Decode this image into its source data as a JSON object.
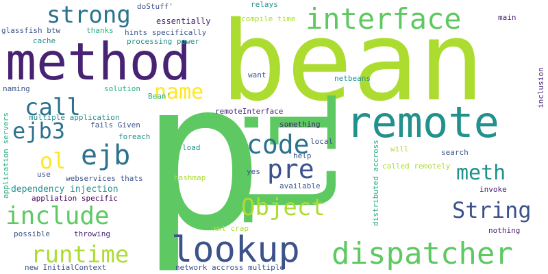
{
  "background": "#ffffff",
  "palette": {
    "purple": "#482374",
    "indigo": "#3b528b",
    "blue": "#2c728e",
    "teal": "#21918c",
    "green": "#28ae80",
    "lightgreen": "#5ec962",
    "lime": "#addc30",
    "yellow": "#fde725",
    "dark": "#440154"
  },
  "words": [
    {
      "text": "p",
      "color": "lightgreen"
    },
    {
      "text": "bean",
      "color": "lime"
    },
    {
      "text": "li",
      "color": "lightgreen"
    },
    {
      "text": "method",
      "color": "purple"
    },
    {
      "text": "remote",
      "color": "teal"
    },
    {
      "text": "lookup",
      "color": "indigo"
    },
    {
      "text": "dispatcher",
      "color": "lightgreen"
    },
    {
      "text": "interface",
      "color": "lightgreen"
    },
    {
      "text": "strong",
      "color": "blue"
    },
    {
      "text": "name",
      "color": "yellow"
    },
    {
      "text": "call",
      "color": "blue"
    },
    {
      "text": "ejb3",
      "color": "blue"
    },
    {
      "text": "ejb",
      "color": "blue"
    },
    {
      "text": "ol",
      "color": "yellow"
    },
    {
      "text": "code",
      "color": "blue"
    },
    {
      "text": "pre",
      "color": "indigo"
    },
    {
      "text": "meth",
      "color": "teal"
    },
    {
      "text": "String",
      "color": "indigo"
    },
    {
      "text": "Object",
      "color": "lime"
    },
    {
      "text": "include",
      "color": "lightgreen"
    },
    {
      "text": "runtime",
      "color": "lime"
    },
    {
      "text": "dependency injection",
      "color": "teal"
    },
    {
      "text": "doStuff'",
      "color": "indigo"
    },
    {
      "text": "essentially",
      "color": "purple"
    },
    {
      "text": "relays",
      "color": "teal"
    },
    {
      "text": "compile time",
      "color": "lime"
    },
    {
      "text": "main",
      "color": "purple"
    },
    {
      "text": "glassfish btw",
      "color": "indigo"
    },
    {
      "text": "thanks",
      "color": "green"
    },
    {
      "text": "hints specifically",
      "color": "indigo"
    },
    {
      "text": "processing power",
      "color": "teal"
    },
    {
      "text": "cache",
      "color": "teal"
    },
    {
      "text": "want",
      "color": "indigo"
    },
    {
      "text": "Bean'",
      "color": "green"
    },
    {
      "text": "netbeans",
      "color": "teal"
    },
    {
      "text": "inclusion",
      "color": "purple"
    },
    {
      "text": "naming",
      "color": "indigo"
    },
    {
      "text": "solution",
      "color": "green"
    },
    {
      "text": "remoteInterface",
      "color": "purple"
    },
    {
      "text": "something",
      "color": "purple"
    },
    {
      "text": "multiple application",
      "color": "teal"
    },
    {
      "text": "fails Given",
      "color": "indigo"
    },
    {
      "text": "foreach",
      "color": "teal"
    },
    {
      "text": "application servers",
      "color": "green"
    },
    {
      "text": "distributed accross",
      "color": "green"
    },
    {
      "text": "load",
      "color": "teal"
    },
    {
      "text": "local",
      "color": "indigo"
    },
    {
      "text": "help",
      "color": "indigo"
    },
    {
      "text": "will",
      "color": "lime"
    },
    {
      "text": "search",
      "color": "indigo"
    },
    {
      "text": "called remotely",
      "color": "lime"
    },
    {
      "text": "use",
      "color": "indigo"
    },
    {
      "text": "webservices thats",
      "color": "indigo"
    },
    {
      "text": "hashmap",
      "color": "lime"
    },
    {
      "text": "yes",
      "color": "indigo"
    },
    {
      "text": "available",
      "color": "indigo"
    },
    {
      "text": "invoke",
      "color": "purple"
    },
    {
      "text": "appliation specific",
      "color": "dark"
    },
    {
      "text": "nothing",
      "color": "purple"
    },
    {
      "text": "xml crap",
      "color": "lime"
    },
    {
      "text": "possible",
      "color": "indigo"
    },
    {
      "text": "throwing",
      "color": "purple"
    },
    {
      "text": "new InitialContext",
      "color": "indigo"
    },
    {
      "text": "network accross multiple",
      "color": "indigo"
    }
  ]
}
